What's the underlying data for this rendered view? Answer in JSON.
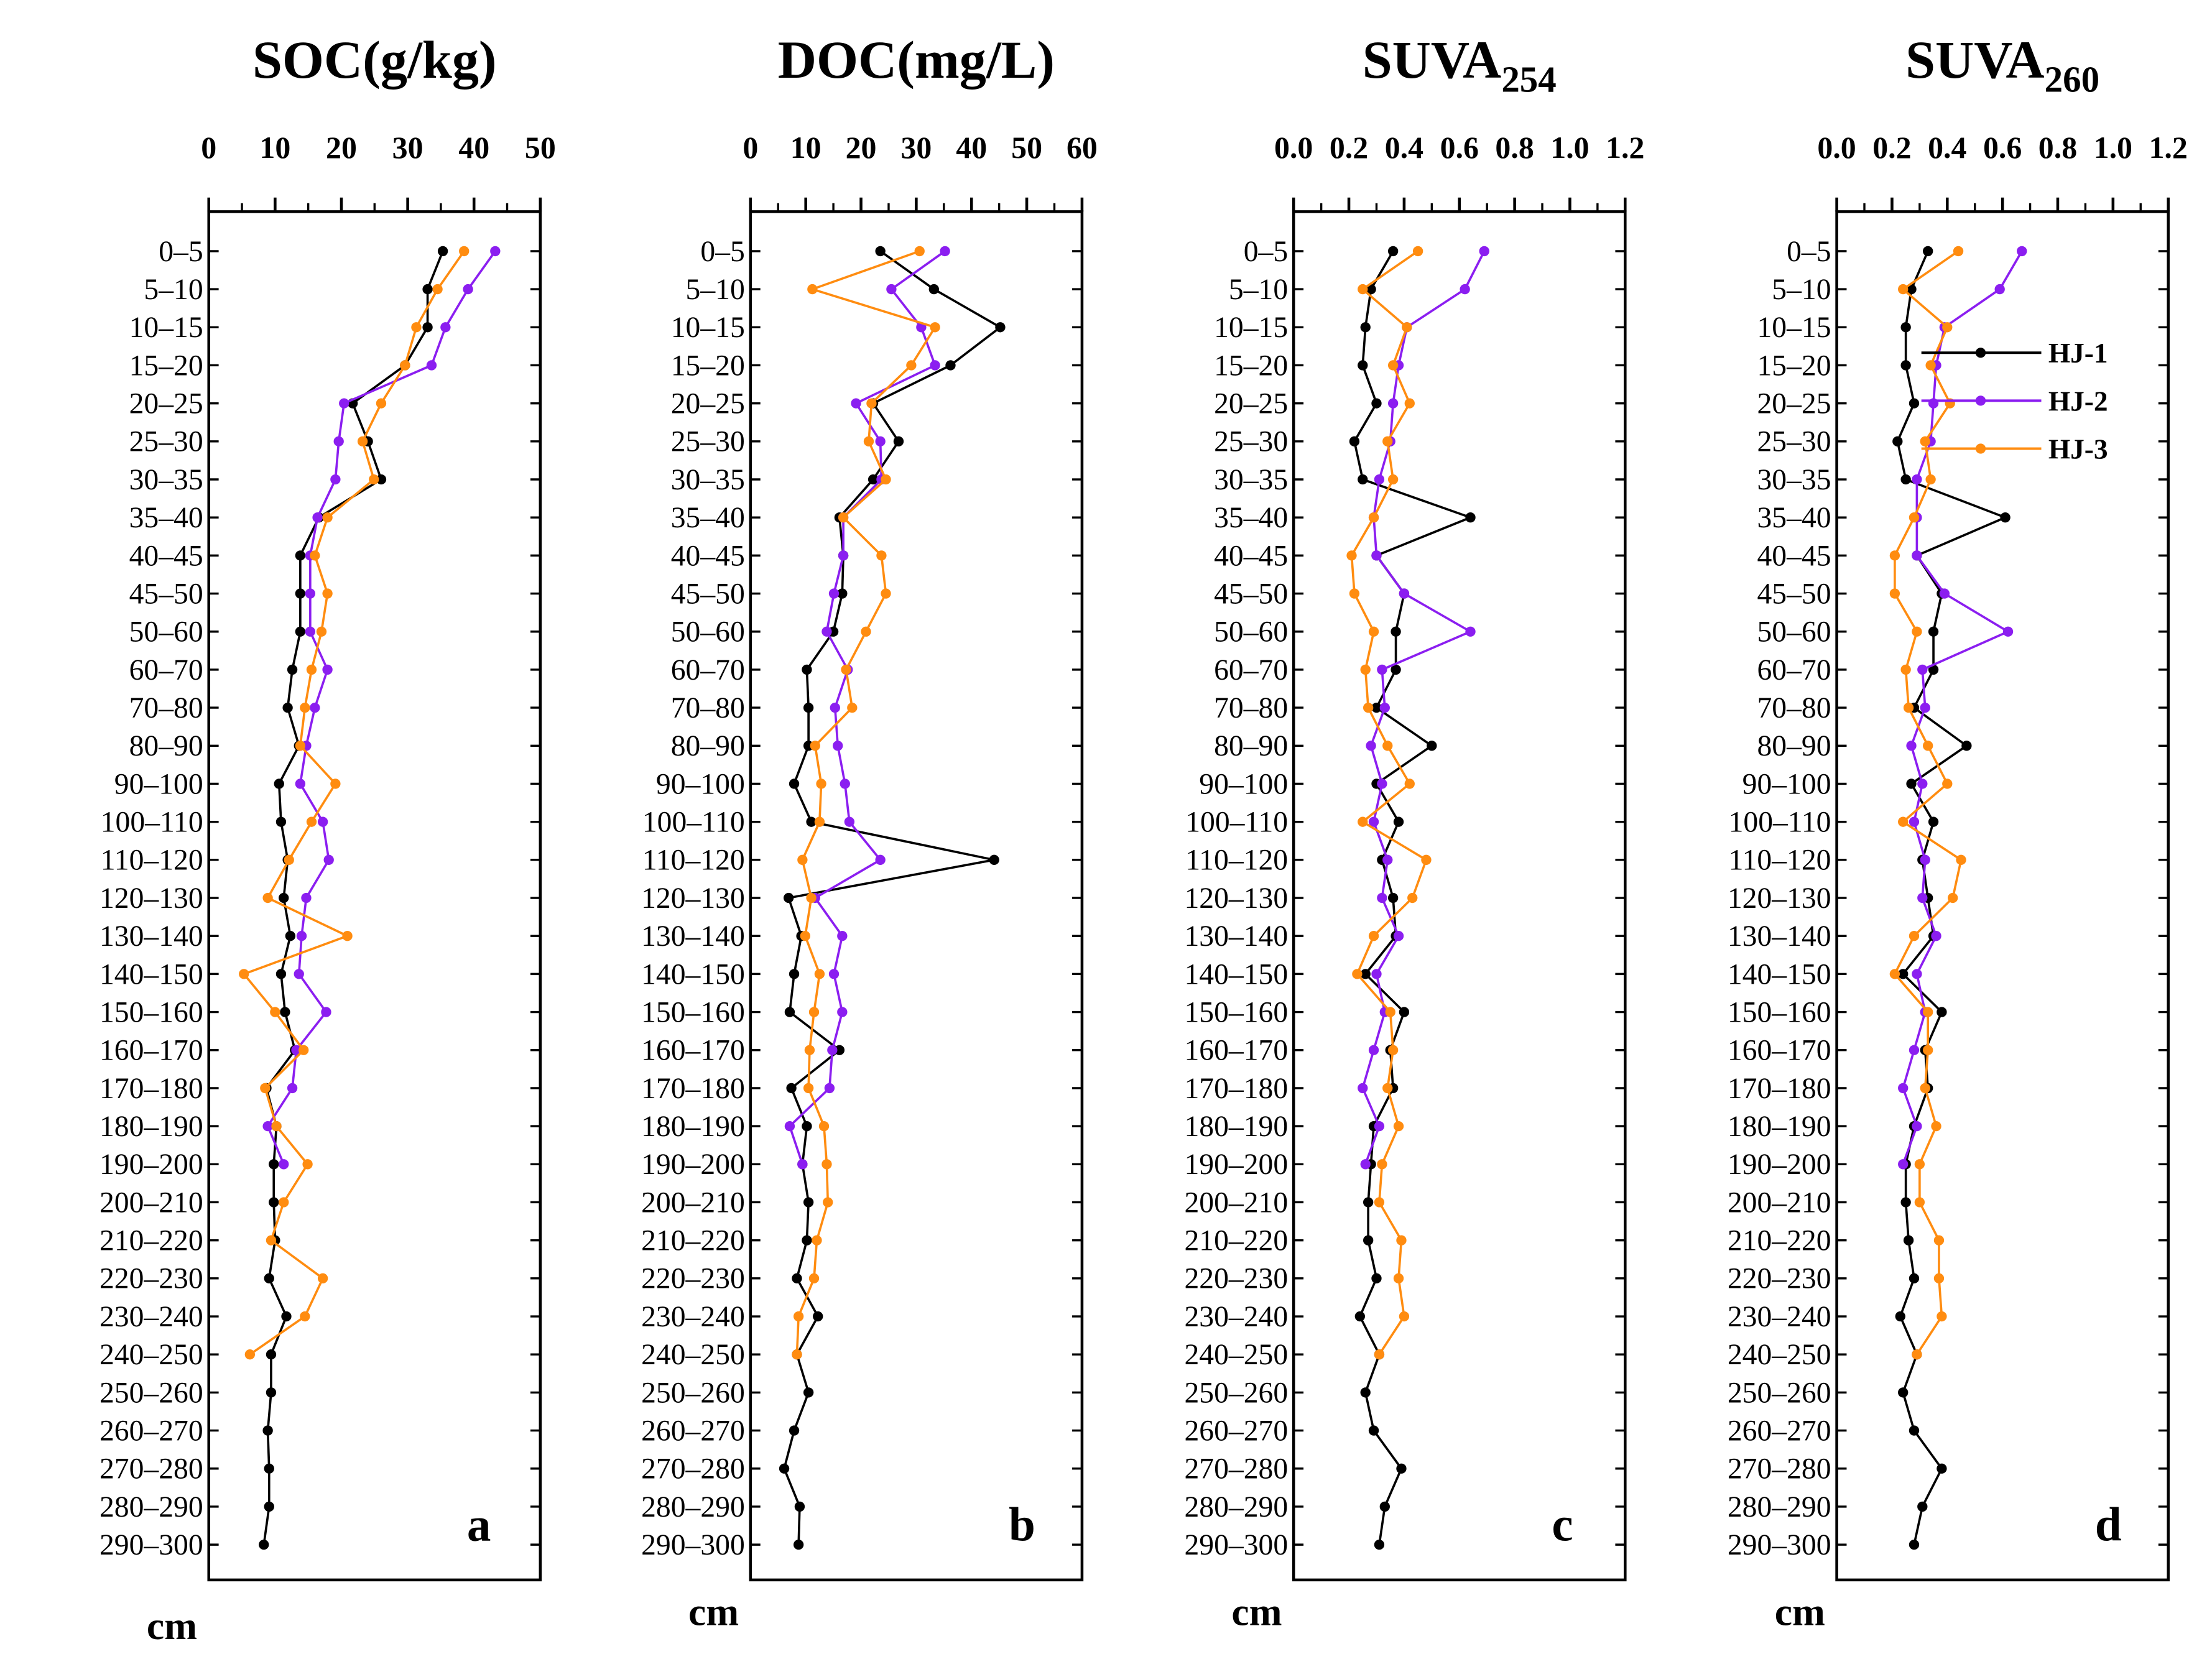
{
  "chart_data": {
    "type": "line",
    "depth_unit": "cm",
    "depths": [
      "0-5",
      "5-10",
      "10-15",
      "15-20",
      "20-25",
      "25-30",
      "30-35",
      "35-40",
      "40-45",
      "45-50",
      "50-60",
      "60-70",
      "70-80",
      "80-90",
      "90-100",
      "100-110",
      "110-120",
      "120-130",
      "130-140",
      "140-150",
      "150-160",
      "160-170",
      "170-180",
      "180-190",
      "190-200",
      "200-210",
      "210-220",
      "220-230",
      "230-240",
      "240-250",
      "250-260",
      "260-270",
      "270-280",
      "280-290",
      "290-300"
    ],
    "legend": [
      {
        "name": "HJ-1",
        "color": "#000000"
      },
      {
        "name": "HJ-2",
        "color": "#8B1EF0"
      },
      {
        "name": "HJ-3",
        "color": "#FF8C10"
      }
    ],
    "panels": [
      {
        "letter": "a",
        "title": "SOC(g/kg)",
        "title_sub": "",
        "xlim": [
          0,
          50
        ],
        "ticks": [
          "0",
          "10",
          "20",
          "30",
          "40",
          "50"
        ],
        "series": [
          {
            "name": "HJ-1",
            "values": [
              35.3,
              33,
              33,
              29.6,
              21.7,
              24,
              26,
              16.6,
              13.8,
              13.8,
              13.8,
              12.6,
              11.9,
              13.6,
              10.6,
              10.9,
              11.9,
              11.3,
              12.3,
              10.9,
              11.5,
              13,
              8.7,
              10.2,
              9.8,
              9.8,
              10,
              9.1,
              11.7,
              9.4,
              9.4,
              8.9,
              9.1,
              9.1,
              8.3
            ]
          },
          {
            "name": "HJ-2",
            "values": [
              43.2,
              39.1,
              35.7,
              33.6,
              20.4,
              19.6,
              19.1,
              16.4,
              15.3,
              15.3,
              15.3,
              17.9,
              16,
              14.7,
              13.8,
              17.2,
              18.1,
              14.7,
              14,
              13.6,
              17.7,
              13.2,
              12.6,
              8.9,
              11.3
            ]
          },
          {
            "name": "HJ-3",
            "values": [
              38.5,
              34.5,
              31.3,
              29.6,
              26,
              23.2,
              24.9,
              17.9,
              16,
              17.9,
              17,
              15.5,
              14.5,
              13.8,
              19.1,
              15.5,
              12.1,
              8.9,
              20.9,
              5.3,
              10,
              14.3,
              8.5,
              10.2,
              14.9,
              11.3,
              9.4,
              17.2,
              14.5,
              6.2
            ]
          }
        ]
      },
      {
        "letter": "b",
        "title": "DOC(mg/L)",
        "title_sub": "",
        "xlim": [
          0,
          60
        ],
        "ticks": [
          "0",
          "10",
          "20",
          "30",
          "40",
          "50",
          "60"
        ],
        "series": [
          {
            "name": "HJ-1",
            "values": [
              23.5,
              33.2,
              45.2,
              36.2,
              22.2,
              26.8,
              22.2,
              16.1,
              16.8,
              16.6,
              15,
              10.2,
              10.5,
              10.5,
              7.9,
              11,
              44.1,
              6.9,
              9.2,
              7.9,
              7.1,
              16.1,
              7.4,
              10.2,
              9.4,
              10.5,
              10.2,
              8.4,
              12.2,
              8.4,
              10.5,
              7.9,
              6.1,
              8.9,
              8.7
            ]
          },
          {
            "name": "HJ-2",
            "values": [
              35.2,
              25.5,
              30.9,
              33.4,
              19.1,
              23.5,
              23.7,
              16.8,
              16.8,
              15.1,
              13.8,
              17.6,
              15.3,
              15.8,
              17.1,
              17.9,
              23.5,
              11.7,
              16.6,
              15.1,
              16.6,
              14.8,
              14.3,
              7.1,
              9.4
            ]
          },
          {
            "name": "HJ-3",
            "values": [
              30.6,
              11.2,
              33.4,
              29.1,
              21.9,
              21.4,
              24.5,
              16.8,
              23.7,
              24.5,
              20.9,
              17.3,
              18.4,
              11.7,
              12.8,
              12.5,
              9.4,
              11,
              9.9,
              12.5,
              11.5,
              10.7,
              10.5,
              13.3,
              13.8,
              14,
              12,
              11.5,
              8.7,
              8.4
            ]
          }
        ]
      },
      {
        "letter": "c",
        "title": "SUVA",
        "title_sub": "254",
        "xlim": [
          0,
          1.2
        ],
        "ticks": [
          "0.0",
          "0.2",
          "0.4",
          "0.6",
          "0.8",
          "1.0",
          "1.2"
        ],
        "series": [
          {
            "name": "HJ-1",
            "values": [
              0.36,
              0.28,
              0.26,
              0.25,
              0.3,
              0.22,
              0.25,
              0.64,
              0.3,
              0.4,
              0.37,
              0.37,
              0.3,
              0.5,
              0.3,
              0.38,
              0.32,
              0.36,
              0.37,
              0.26,
              0.4,
              0.35,
              0.36,
              0.29,
              0.28,
              0.27,
              0.27,
              0.3,
              0.24,
              0.31,
              0.26,
              0.29,
              0.39,
              0.33,
              0.31
            ]
          },
          {
            "name": "HJ-2",
            "values": [
              0.69,
              0.62,
              0.41,
              0.38,
              0.36,
              0.35,
              0.31,
              0.29,
              0.3,
              0.4,
              0.64,
              0.32,
              0.33,
              0.28,
              0.32,
              0.29,
              0.34,
              0.32,
              0.38,
              0.3,
              0.33,
              0.29,
              0.25,
              0.31,
              0.26
            ]
          },
          {
            "name": "HJ-3",
            "values": [
              0.45,
              0.25,
              0.41,
              0.36,
              0.42,
              0.34,
              0.36,
              0.29,
              0.21,
              0.22,
              0.29,
              0.26,
              0.27,
              0.34,
              0.42,
              0.25,
              0.48,
              0.43,
              0.29,
              0.23,
              0.35,
              0.36,
              0.34,
              0.38,
              0.32,
              0.31,
              0.39,
              0.38,
              0.4,
              0.31
            ]
          }
        ]
      },
      {
        "letter": "d",
        "title": "SUVA",
        "title_sub": "260",
        "xlim": [
          0,
          1.2
        ],
        "ticks": [
          "0.0",
          "0.2",
          "0.4",
          "0.6",
          "0.8",
          "1.0",
          "1.2"
        ],
        "series": [
          {
            "name": "HJ-1",
            "values": [
              0.33,
              0.27,
              0.25,
              0.25,
              0.28,
              0.22,
              0.25,
              0.61,
              0.29,
              0.38,
              0.35,
              0.35,
              0.28,
              0.47,
              0.27,
              0.35,
              0.31,
              0.33,
              0.35,
              0.24,
              0.38,
              0.32,
              0.33,
              0.28,
              0.25,
              0.25,
              0.26,
              0.28,
              0.23,
              0.29,
              0.24,
              0.28,
              0.38,
              0.31,
              0.28
            ]
          },
          {
            "name": "HJ-2",
            "values": [
              0.67,
              0.59,
              0.39,
              0.36,
              0.35,
              0.34,
              0.29,
              0.29,
              0.29,
              0.39,
              0.62,
              0.31,
              0.32,
              0.27,
              0.31,
              0.28,
              0.32,
              0.31,
              0.36,
              0.29,
              0.32,
              0.28,
              0.24,
              0.29,
              0.24
            ]
          },
          {
            "name": "HJ-3",
            "values": [
              0.44,
              0.24,
              0.4,
              0.34,
              0.41,
              0.32,
              0.34,
              0.28,
              0.21,
              0.21,
              0.29,
              0.25,
              0.26,
              0.33,
              0.4,
              0.24,
              0.45,
              0.42,
              0.28,
              0.21,
              0.33,
              0.33,
              0.32,
              0.36,
              0.3,
              0.3,
              0.37,
              0.37,
              0.38,
              0.29
            ]
          }
        ]
      }
    ]
  }
}
